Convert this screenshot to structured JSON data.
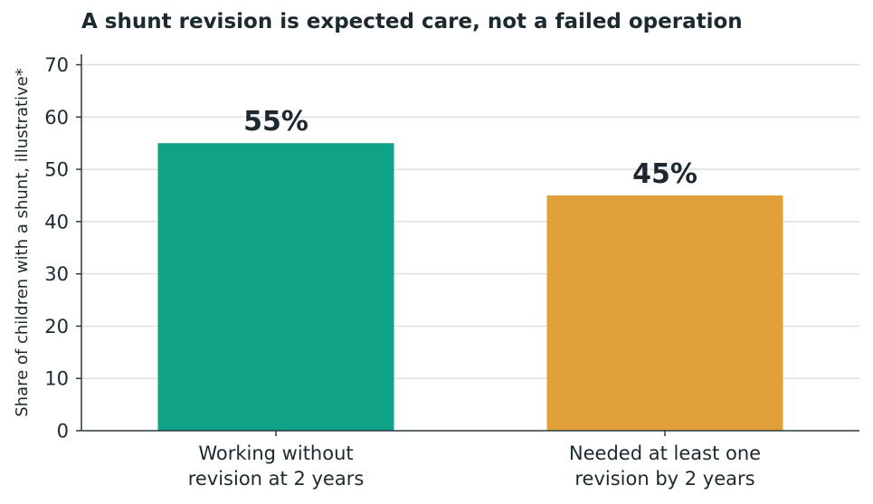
{
  "chart_data": {
    "type": "bar",
    "title": "A shunt revision is expected care, not a failed operation",
    "xlabel": "",
    "ylabel": "Share of children with a shunt, illustrative*",
    "categories": [
      [
        "Working without",
        "revision at 2 years"
      ],
      [
        "Needed at least one",
        "revision by 2 years"
      ]
    ],
    "values": [
      55,
      45
    ],
    "data_labels": [
      "55%",
      "45%"
    ],
    "colors": [
      "#0fa287",
      "#e0a03a"
    ],
    "ylim": [
      0,
      72
    ],
    "yticks": [
      0,
      10,
      20,
      30,
      40,
      50,
      60,
      70
    ],
    "grid": "horizontal",
    "legend": "none"
  },
  "style": {
    "axis_color": "#2b3a40",
    "grid_color": "#dcdfe0",
    "text_color": "#1c2a2f"
  }
}
